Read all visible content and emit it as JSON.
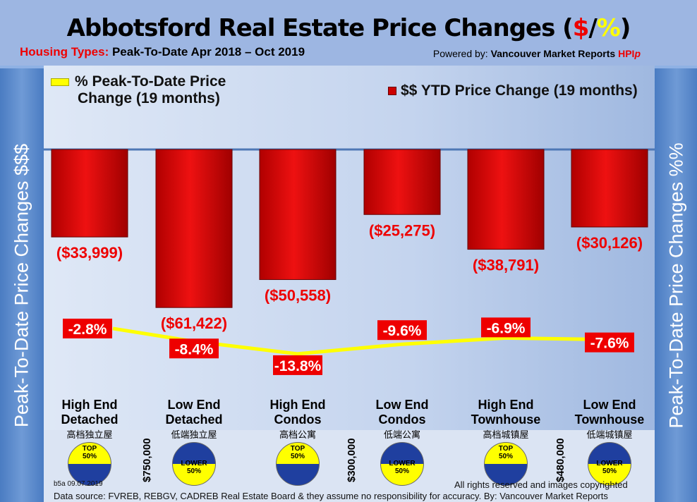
{
  "header": {
    "title_main": "Abbotsford Real Estate Price Changes (",
    "title_dollar": "$",
    "title_slash": "/",
    "title_pct": "%",
    "title_close": ")",
    "subtitle_label": "Housing Types:",
    "subtitle_range": " Peak-To-Date Apr 2018 – Oct 2019",
    "powered_label": "Powered by: ",
    "powered_brand": "Vancouver Market Reports ",
    "powered_hpi": "HPI",
    "powered_p": "p"
  },
  "side_left": {
    "text": "Peak-To-Date Price Changes ",
    "accent": "$$$"
  },
  "side_right": {
    "text": "Peak-To-Date  Price  Changes ",
    "accent": "%%"
  },
  "chart_data": {
    "type": "bar+line",
    "categories": [
      "High End Detached",
      "Low End Detached",
      "High End Condos",
      "Low End Condos",
      "High End Townhouse",
      "Low End Townhouse"
    ],
    "categories_cn": [
      "高档独立屋",
      "低端独立屋",
      "高档公寓",
      "低端公寓",
      "高档城镇屋",
      "低端城镇屋"
    ],
    "series": [
      {
        "name": "$$ YTD Price Change (19 months)",
        "type": "bar",
        "values": [
          -33999,
          -61422,
          -50558,
          -25275,
          -38791,
          -30126
        ],
        "labels": [
          "($33,999)",
          "($61,422)",
          "($50,558)",
          "($25,275)",
          "($38,791)",
          "($30,126)"
        ],
        "color": "#dd0000"
      },
      {
        "name": "% Peak-To-Date Price Change (19 months)",
        "type": "line",
        "values": [
          -2.8,
          -8.4,
          -13.8,
          -9.6,
          -6.9,
          -7.6
        ],
        "labels": [
          "-2.8%",
          "-8.4%",
          "-13.8%",
          "-9.6%",
          "-6.9%",
          "-7.6%"
        ],
        "color": "#ffff00"
      }
    ],
    "legend_line_1": "% Peak-To-Date Price",
    "legend_line_2": "Change (19 months)",
    "legend_bar": "$$ YTD Price Change (19 months)"
  },
  "thresholds": [
    "$750,000",
    "$300,000",
    "$480,000"
  ],
  "badges": [
    {
      "top": "TOP",
      "bot": "50%",
      "kind": "top"
    },
    {
      "top": "LOWER",
      "bot": "50%",
      "kind": "lower"
    },
    {
      "top": "TOP",
      "bot": "50%",
      "kind": "top"
    },
    {
      "top": "LOWER",
      "bot": "50%",
      "kind": "lower"
    },
    {
      "top": "TOP",
      "bot": "50%",
      "kind": "top"
    },
    {
      "top": "LOWER",
      "bot": "50%",
      "kind": "lower"
    }
  ],
  "footer": {
    "version": "b5a 09.07.2019",
    "rights": "All rights reserved and  images copyrighted",
    "source": "Data source: FVREB, REBGV, CADREB Real Estate Board & they assume no responsibility for accuracy. By: Vancouver Market Reports"
  }
}
